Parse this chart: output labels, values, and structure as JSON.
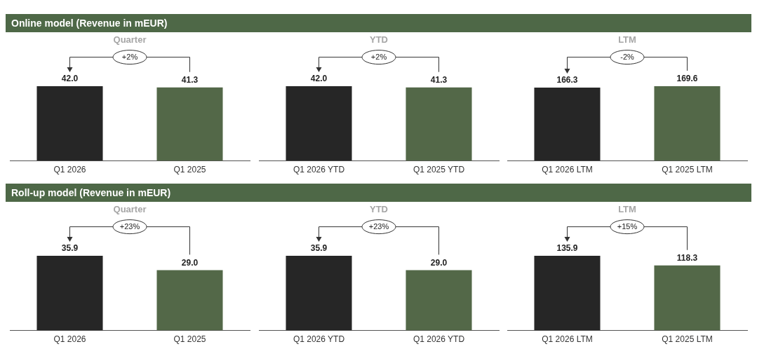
{
  "chart_data": [
    {
      "type": "other",
      "title": "Online model (Revenue in mEUR)"
    },
    {
      "type": "bar",
      "title": "Quarter",
      "categories": [
        "Q1 2026",
        "Q1 2025"
      ],
      "values": [
        42.0,
        41.3
      ],
      "colors": [
        "#262626",
        "#536848"
      ],
      "value_labels": [
        "42.0",
        "41.3"
      ],
      "annotations": [
        "+2%"
      ]
    },
    {
      "type": "bar",
      "title": "YTD",
      "categories": [
        "Q1 2026 YTD",
        "Q1 2025 YTD"
      ],
      "values": [
        42.0,
        41.3
      ],
      "colors": [
        "#262626",
        "#536848"
      ],
      "value_labels": [
        "42.0",
        "41.3"
      ],
      "annotations": [
        "+2%"
      ]
    },
    {
      "type": "bar",
      "title": "LTM",
      "categories": [
        "Q1 2026 LTM",
        "Q1 2025 LTM"
      ],
      "values": [
        166.3,
        169.6
      ],
      "colors": [
        "#262626",
        "#536848"
      ],
      "value_labels": [
        "166.3",
        "169.6"
      ],
      "annotations": [
        "-2%"
      ]
    },
    {
      "type": "other",
      "title": "Roll-up model (Revenue in mEUR)"
    },
    {
      "type": "bar",
      "title": "Quarter",
      "categories": [
        "Q1 2026",
        "Q1 2025"
      ],
      "values": [
        35.9,
        29.0
      ],
      "colors": [
        "#262626",
        "#536848"
      ],
      "value_labels": [
        "35.9",
        "29.0"
      ],
      "annotations": [
        "+23%"
      ]
    },
    {
      "type": "bar",
      "title": "YTD",
      "categories": [
        "Q1 2026 YTD",
        "Q1 2026 YTD"
      ],
      "values": [
        35.9,
        29.0
      ],
      "colors": [
        "#262626",
        "#536848"
      ],
      "value_labels": [
        "35.9",
        "29.0"
      ],
      "annotations": [
        "+23%"
      ]
    },
    {
      "type": "bar",
      "title": "LTM",
      "categories": [
        "Q1 2026 LTM",
        "Q1 2025 LTM"
      ],
      "values": [
        135.9,
        118.3
      ],
      "colors": [
        "#262626",
        "#536848"
      ],
      "value_labels": [
        "135.9",
        "118.3"
      ],
      "annotations": [
        "+15%"
      ]
    }
  ]
}
